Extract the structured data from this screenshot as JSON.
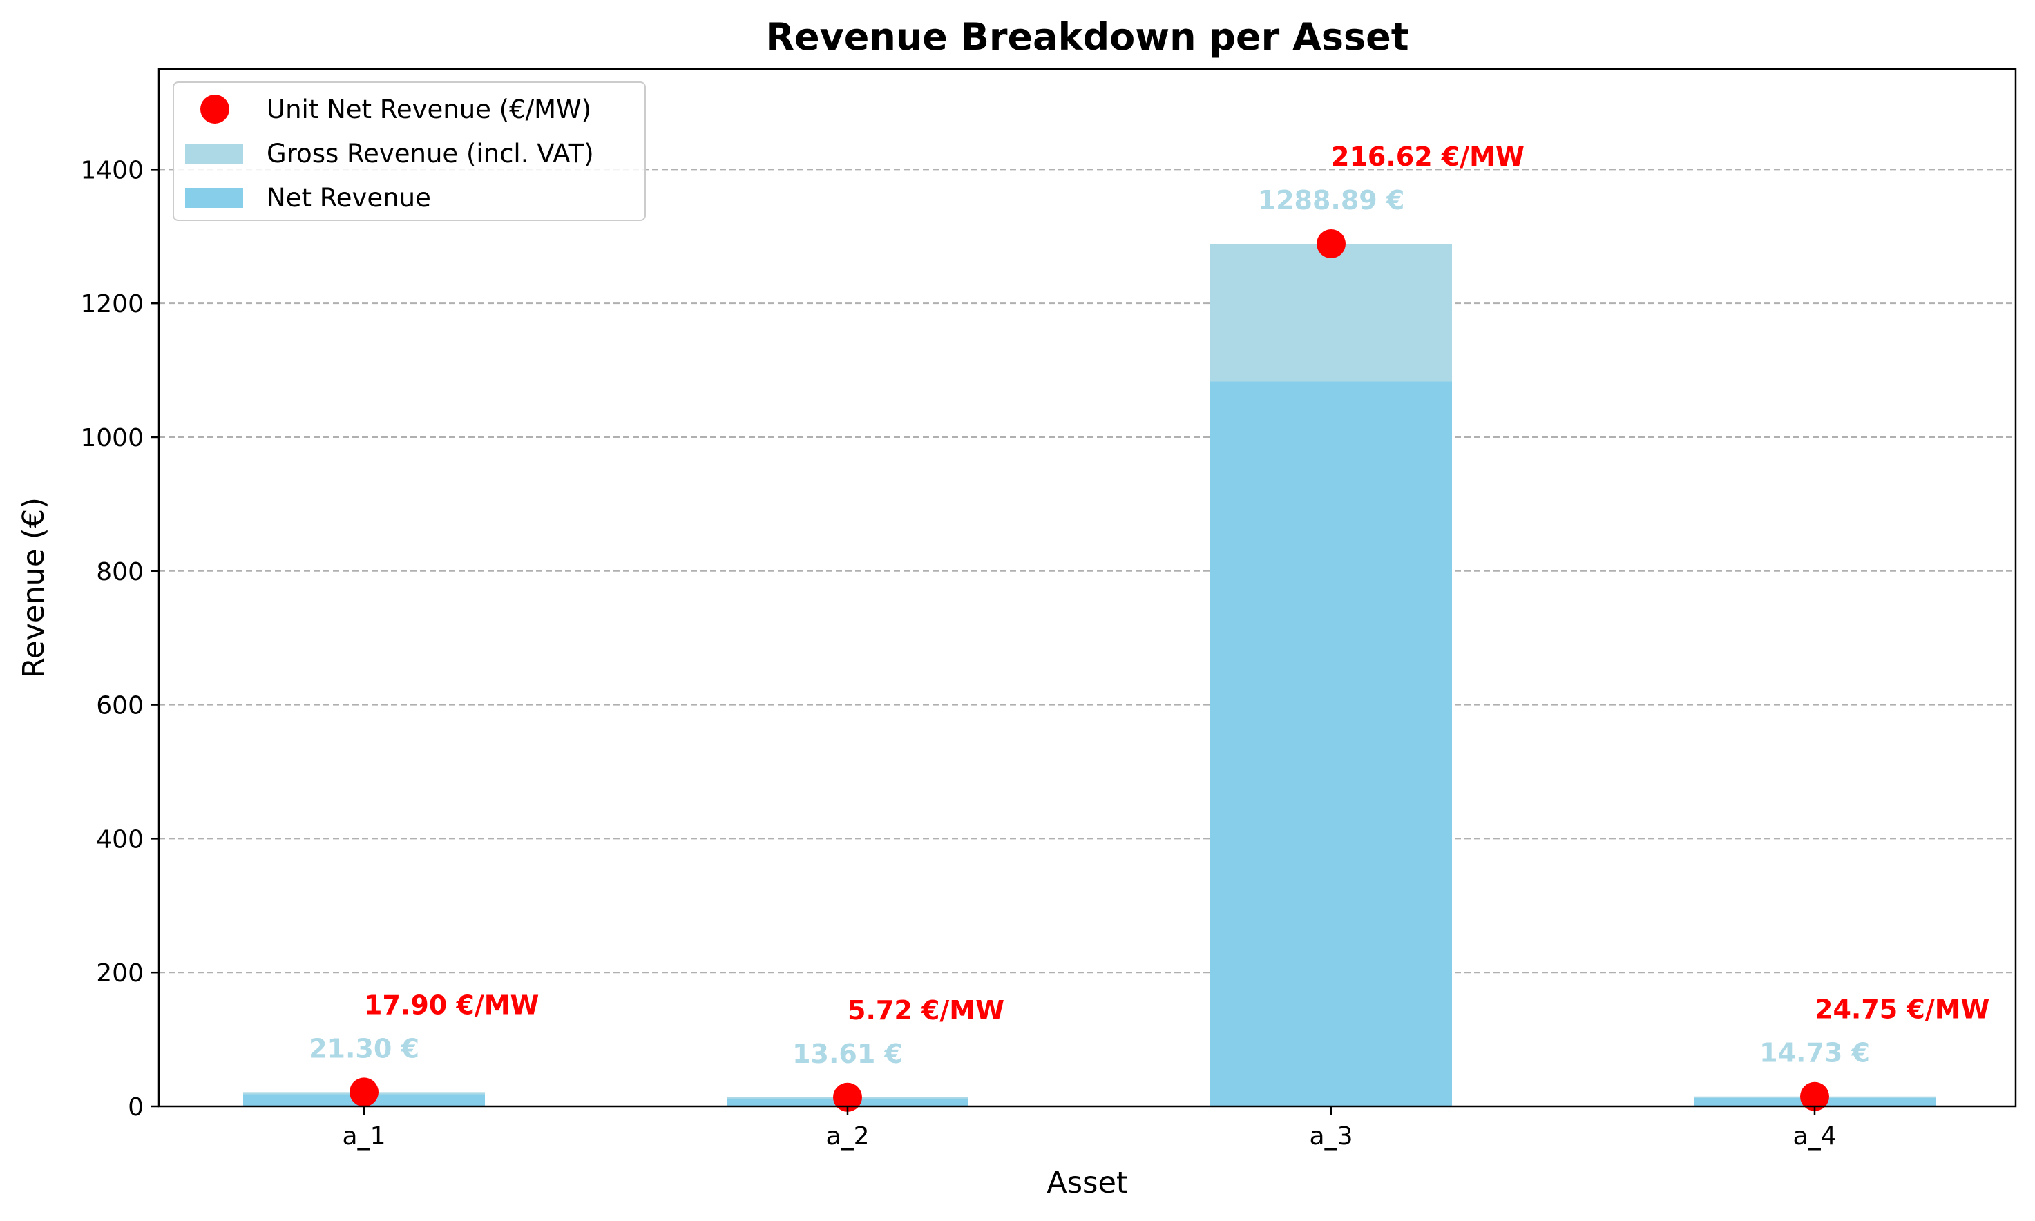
{
  "chart_data": {
    "type": "bar",
    "title": "Revenue Breakdown per Asset",
    "xlabel": "Asset",
    "ylabel": "Revenue (€)",
    "categories": [
      "a_1",
      "a_2",
      "a_3",
      "a_4"
    ],
    "ylim": [
      0,
      1550
    ],
    "yticks": [
      0,
      200,
      400,
      600,
      800,
      1000,
      1200,
      1400
    ],
    "grid": "y-dashed",
    "legend_position": "top-left",
    "series": [
      {
        "name": "Gross Revenue (incl. VAT)",
        "type": "bar",
        "color": "#add8e6",
        "values": [
          21.3,
          13.61,
          1288.89,
          14.73
        ],
        "labels": [
          "21.30 €",
          "13.61 €",
          "1288.89 €",
          "14.73 €"
        ]
      },
      {
        "name": "Net Revenue",
        "type": "bar",
        "color": "#87ceeb",
        "values": [
          18.0,
          11.5,
          1083.0,
          12.4
        ]
      },
      {
        "name": "Unit Net Revenue (€/MW)",
        "type": "scatter",
        "color": "#ff0000",
        "marker_y": [
          21.3,
          13.61,
          1288.89,
          14.73
        ],
        "values": [
          17.9,
          5.72,
          216.62,
          24.75
        ],
        "labels": [
          "17.90 €/MW",
          "5.72 €/MW",
          "216.62 €/MW",
          "24.75 €/MW"
        ]
      }
    ]
  },
  "legend": {
    "items": [
      {
        "label": "Unit Net Revenue (€/MW)",
        "kind": "marker",
        "color": "#ff0000"
      },
      {
        "label": "Gross Revenue (incl. VAT)",
        "kind": "patch",
        "color": "#add8e6"
      },
      {
        "label": "Net Revenue",
        "kind": "patch",
        "color": "#87ceeb"
      }
    ]
  }
}
